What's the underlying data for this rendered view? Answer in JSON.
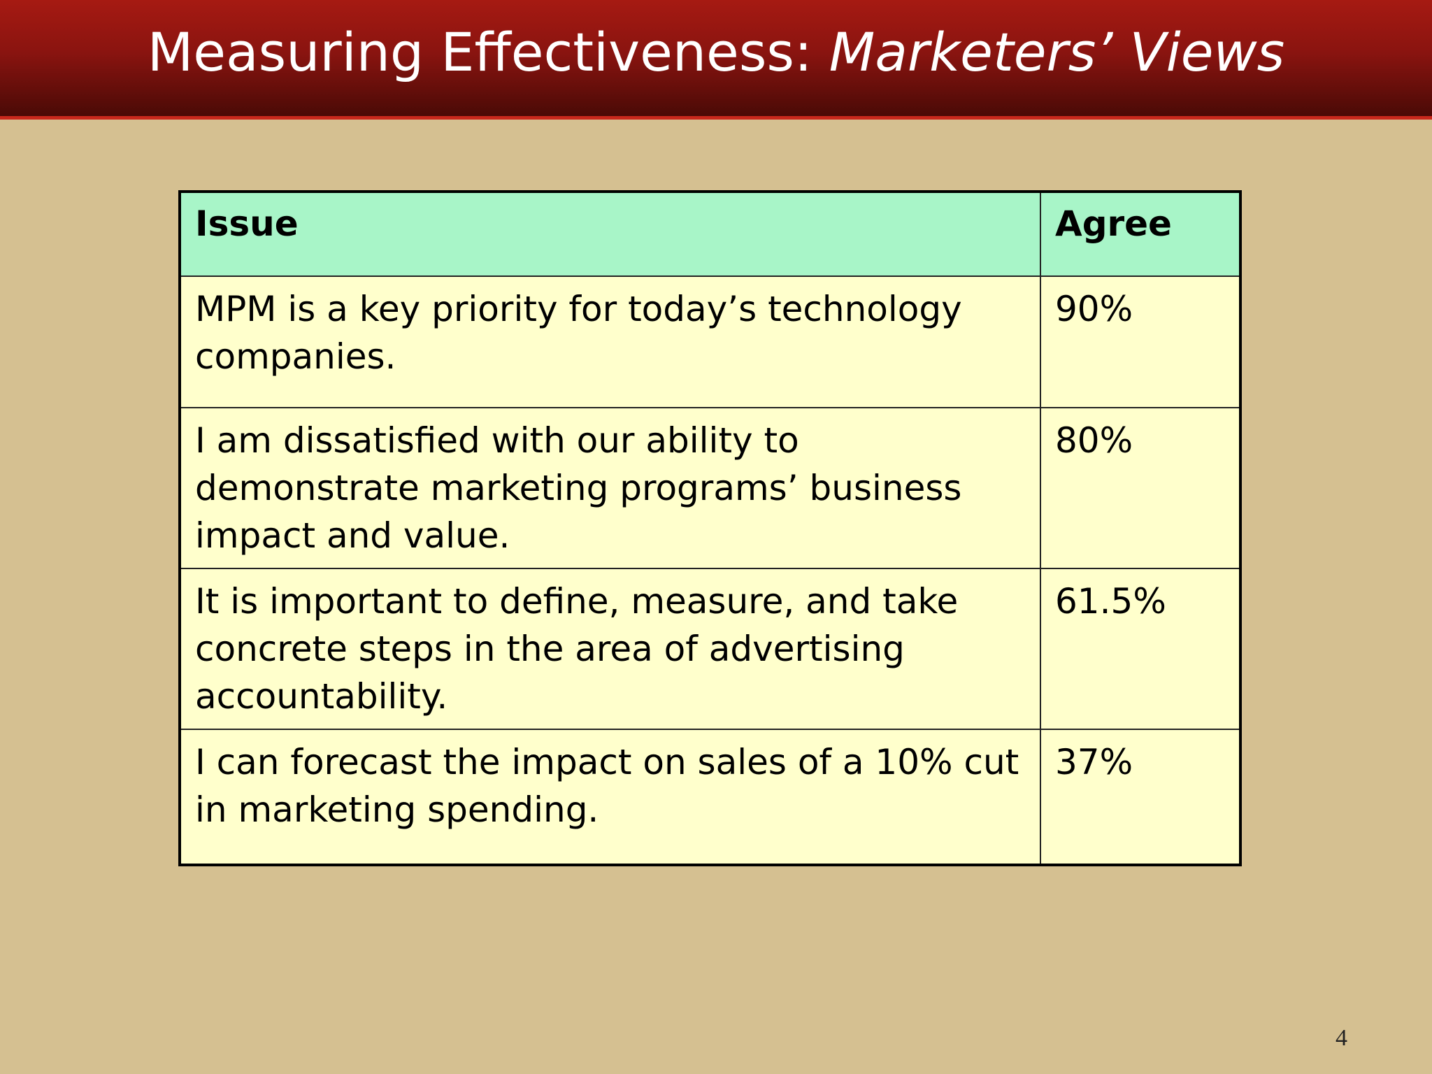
{
  "header": {
    "title": "Measuring Effectiveness:",
    "title_italic": "Marketers’ Views"
  },
  "table": {
    "columns": [
      "Issue",
      "Agree"
    ],
    "rows": [
      [
        "MPM is a key priority for today’s technology companies.",
        "90%"
      ],
      [
        "I am dissatisfied with our ability to demonstrate marketing programs’ business impact and value.",
        "80%"
      ],
      [
        "It is important to define, measure, and take concrete steps in the area of advertising accountability.",
        "61.5%"
      ],
      [
        "I can forecast the impact on sales of a 10% cut in marketing spending.",
        "37%"
      ]
    ]
  },
  "page_number": "4"
}
